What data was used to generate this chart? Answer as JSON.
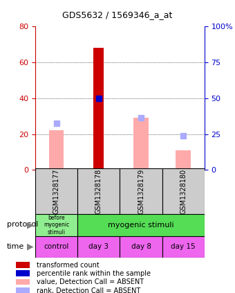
{
  "title": "GDS5632 / 1569346_a_at",
  "samples": [
    "GSM1328177",
    "GSM1328178",
    "GSM1328179",
    "GSM1328180"
  ],
  "bar_values_red": [
    0,
    68,
    0,
    0
  ],
  "bar_values_pink": [
    22,
    0,
    29,
    11
  ],
  "dot_values_blue": [
    0,
    40,
    0,
    0
  ],
  "dot_values_lightblue": [
    26,
    0,
    29,
    19
  ],
  "ylim_left": [
    0,
    80
  ],
  "ylim_right": [
    0,
    100
  ],
  "yticks_left": [
    0,
    20,
    40,
    60,
    80
  ],
  "yticks_right": [
    0,
    25,
    50,
    75,
    100
  ],
  "ylabel_left_color": "#cc0000",
  "ylabel_right_color": "#0000cc",
  "protocol_labels": [
    "before\nmyogenic\nstimuli",
    "myogenic stimuli"
  ],
  "protocol_colors": [
    "#90ee90",
    "#55dd55"
  ],
  "time_labels": [
    "control",
    "day 3",
    "day 8",
    "day 15"
  ],
  "time_color": "#ee66ee",
  "sample_bg_color": "#cccccc",
  "legend_items": [
    {
      "color": "#cc0000",
      "label": "transformed count"
    },
    {
      "color": "#0000cc",
      "label": "percentile rank within the sample"
    },
    {
      "color": "#ffaaaa",
      "label": "value, Detection Call = ABSENT"
    },
    {
      "color": "#aaaaff",
      "label": "rank, Detection Call = ABSENT"
    }
  ]
}
